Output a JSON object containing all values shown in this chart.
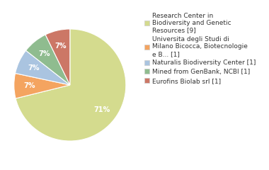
{
  "labels": [
    "Research Center in\nBiodiversity and Genetic\nResources [9]",
    "Universita degli Studi di\nMilano Bicocca, Biotecnologie\ne B... [1]",
    "Naturalis Biodiversity Center [1]",
    "Mined from GenBank, NCBI [1]",
    "Eurofins Biolab srl [1]"
  ],
  "values": [
    69,
    7,
    7,
    7,
    7
  ],
  "colors": [
    "#d4db8e",
    "#f4a460",
    "#aac4e0",
    "#8fbc8f",
    "#cc7766"
  ],
  "startangle": 90,
  "background_color": "#ffffff",
  "text_color": "#333333",
  "fontsize": 7.0
}
